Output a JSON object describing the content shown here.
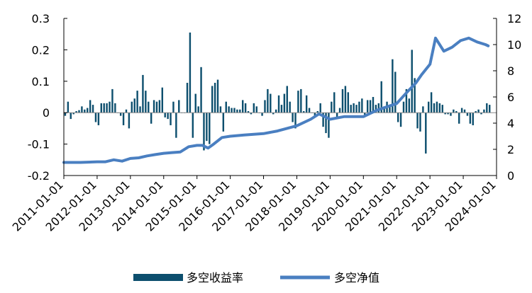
{
  "chart_data": {
    "type": "bar+line",
    "left_axis": {
      "ticks": [
        -0.2,
        -0.1,
        0,
        0.1,
        0.2,
        0.3
      ],
      "labels": [
        "-0.2",
        "-0.1",
        "0",
        "0.1",
        "0.2",
        "0.3"
      ],
      "range": [
        -0.2,
        0.3
      ]
    },
    "right_axis": {
      "ticks": [
        0,
        2,
        4,
        6,
        8,
        10,
        12
      ],
      "labels": [
        "0",
        "2",
        "4",
        "6",
        "8",
        "10",
        "12"
      ],
      "range": [
        0,
        12
      ]
    },
    "x_axis": {
      "range": [
        "2011-01-01",
        "2024-01-01"
      ],
      "tick_labels": [
        "2011-01-01",
        "2012-01-01",
        "2013-01-01",
        "2014-01-01",
        "2015-01-01",
        "2016-01-01",
        "2017-01-01",
        "2018-01-01",
        "2019-01-01",
        "2020-01-01",
        "2021-01-01",
        "2022-01-01",
        "2023-01-01",
        "2024-01-01"
      ]
    },
    "legend": {
      "placement": "bottom"
    },
    "series": [
      {
        "name": "多空收益率",
        "type": "bar",
        "axis": "left",
        "color": "#0d4f6e",
        "points": [
          [
            "2011-01",
            -0.01
          ],
          [
            "2011-02",
            0.035
          ],
          [
            "2011-03",
            -0.02
          ],
          [
            "2011-04",
            -0.005
          ],
          [
            "2011-05",
            0.005
          ],
          [
            "2011-06",
            0.008
          ],
          [
            "2011-07",
            0.02
          ],
          [
            "2011-08",
            0.01
          ],
          [
            "2011-09",
            0.015
          ],
          [
            "2011-10",
            0.04
          ],
          [
            "2011-11",
            0.025
          ],
          [
            "2011-12",
            -0.03
          ],
          [
            "2012-01",
            -0.04
          ],
          [
            "2012-02",
            0.03
          ],
          [
            "2012-03",
            0.03
          ],
          [
            "2012-04",
            0.03
          ],
          [
            "2012-05",
            0.035
          ],
          [
            "2012-06",
            0.075
          ],
          [
            "2012-07",
            0.03
          ],
          [
            "2012-08",
            0.0
          ],
          [
            "2012-09",
            -0.01
          ],
          [
            "2012-10",
            -0.04
          ],
          [
            "2012-11",
            0.01
          ],
          [
            "2012-12",
            -0.05
          ],
          [
            "2013-01",
            0.035
          ],
          [
            "2013-02",
            0.045
          ],
          [
            "2013-03",
            0.07
          ],
          [
            "2013-04",
            0.02
          ],
          [
            "2013-05",
            0.12
          ],
          [
            "2013-06",
            0.07
          ],
          [
            "2013-07",
            0.035
          ],
          [
            "2013-08",
            -0.035
          ],
          [
            "2013-09",
            0.04
          ],
          [
            "2013-10",
            0.035
          ],
          [
            "2013-11",
            0.04
          ],
          [
            "2013-12",
            0.08
          ],
          [
            "2014-01",
            -0.015
          ],
          [
            "2014-02",
            -0.02
          ],
          [
            "2014-03",
            -0.04
          ],
          [
            "2014-04",
            0.035
          ],
          [
            "2014-05",
            -0.08
          ],
          [
            "2014-06",
            0.04
          ],
          [
            "2014-07",
            0.0
          ],
          [
            "2014-08",
            0.0
          ],
          [
            "2014-09",
            0.095
          ],
          [
            "2014-10",
            0.255
          ],
          [
            "2014-11",
            -0.08
          ],
          [
            "2014-12",
            0.06
          ],
          [
            "2015-01",
            0.02
          ],
          [
            "2015-02",
            0.145
          ],
          [
            "2015-03",
            -0.12
          ],
          [
            "2015-04",
            -0.09
          ],
          [
            "2015-05",
            -0.1
          ],
          [
            "2015-06",
            0.085
          ],
          [
            "2015-07",
            0.095
          ],
          [
            "2015-08",
            0.105
          ],
          [
            "2015-09",
            0.02
          ],
          [
            "2015-10",
            -0.06
          ],
          [
            "2015-11",
            0.035
          ],
          [
            "2015-12",
            0.02
          ],
          [
            "2016-01",
            0.015
          ],
          [
            "2016-02",
            0.015
          ],
          [
            "2016-03",
            0.01
          ],
          [
            "2016-04",
            0.01
          ],
          [
            "2016-05",
            0.04
          ],
          [
            "2016-06",
            0.03
          ],
          [
            "2016-07",
            0.005
          ],
          [
            "2016-08",
            -0.005
          ],
          [
            "2016-09",
            0.03
          ],
          [
            "2016-10",
            0.02
          ],
          [
            "2016-11",
            0.0
          ],
          [
            "2016-12",
            -0.01
          ],
          [
            "2017-01",
            0.04
          ],
          [
            "2017-02",
            0.075
          ],
          [
            "2017-03",
            0.06
          ],
          [
            "2017-04",
            -0.005
          ],
          [
            "2017-05",
            0.01
          ],
          [
            "2017-06",
            0.055
          ],
          [
            "2017-07",
            0.025
          ],
          [
            "2017-08",
            0.06
          ],
          [
            "2017-09",
            0.085
          ],
          [
            "2017-10",
            0.035
          ],
          [
            "2017-11",
            -0.03
          ],
          [
            "2017-12",
            -0.05
          ],
          [
            "2018-01",
            0.07
          ],
          [
            "2018-02",
            0.075
          ],
          [
            "2018-03",
            0.005
          ],
          [
            "2018-04",
            0.055
          ],
          [
            "2018-05",
            0.015
          ],
          [
            "2018-06",
            0.0
          ],
          [
            "2018-07",
            -0.01
          ],
          [
            "2018-08",
            0.005
          ],
          [
            "2018-09",
            0.03
          ],
          [
            "2018-10",
            -0.045
          ],
          [
            "2018-11",
            -0.065
          ],
          [
            "2018-12",
            -0.08
          ],
          [
            "2019-01",
            0.035
          ],
          [
            "2019-02",
            0.065
          ],
          [
            "2019-03",
            -0.015
          ],
          [
            "2019-04",
            0.015
          ],
          [
            "2019-05",
            0.075
          ],
          [
            "2019-06",
            0.085
          ],
          [
            "2019-07",
            0.065
          ],
          [
            "2019-08",
            0.025
          ],
          [
            "2019-09",
            0.03
          ],
          [
            "2019-10",
            0.025
          ],
          [
            "2019-11",
            0.035
          ],
          [
            "2019-12",
            0.045
          ],
          [
            "2020-01",
            -0.01
          ],
          [
            "2020-02",
            0.04
          ],
          [
            "2020-03",
            0.04
          ],
          [
            "2020-04",
            0.05
          ],
          [
            "2020-05",
            0.025
          ],
          [
            "2020-06",
            0.03
          ],
          [
            "2020-07",
            0.1
          ],
          [
            "2020-08",
            0.02
          ],
          [
            "2020-09",
            0.035
          ],
          [
            "2020-10",
            0.02
          ],
          [
            "2020-11",
            0.17
          ],
          [
            "2020-12",
            0.13
          ],
          [
            "2021-01",
            -0.03
          ],
          [
            "2021-02",
            -0.045
          ],
          [
            "2021-03",
            0.035
          ],
          [
            "2021-04",
            0.075
          ],
          [
            "2021-05",
            0.045
          ],
          [
            "2021-06",
            0.2
          ],
          [
            "2021-07",
            0.11
          ],
          [
            "2021-08",
            -0.05
          ],
          [
            "2021-09",
            -0.06
          ],
          [
            "2021-10",
            0.02
          ],
          [
            "2021-11",
            -0.13
          ],
          [
            "2021-12",
            0.035
          ],
          [
            "2022-01",
            0.065
          ],
          [
            "2022-02",
            0.03
          ],
          [
            "2022-03",
            0.035
          ],
          [
            "2022-04",
            0.03
          ],
          [
            "2022-05",
            0.025
          ],
          [
            "2022-06",
            -0.005
          ],
          [
            "2022-07",
            -0.005
          ],
          [
            "2022-08",
            -0.01
          ],
          [
            "2022-09",
            0.01
          ],
          [
            "2022-10",
            0.005
          ],
          [
            "2022-11",
            -0.035
          ],
          [
            "2022-12",
            0.015
          ],
          [
            "2023-01",
            0.01
          ],
          [
            "2023-02",
            -0.01
          ],
          [
            "2023-03",
            -0.035
          ],
          [
            "2023-04",
            -0.04
          ],
          [
            "2023-05",
            0.005
          ],
          [
            "2023-06",
            0.01
          ],
          [
            "2023-07",
            -0.005
          ],
          [
            "2023-08",
            0.01
          ],
          [
            "2023-09",
            0.03
          ],
          [
            "2023-10",
            0.025
          ]
        ]
      },
      {
        "name": "多空净值",
        "type": "line",
        "axis": "right",
        "color": "#4a7fc1",
        "points": [
          [
            "2011-01",
            1.0
          ],
          [
            "2011-07",
            1.0
          ],
          [
            "2012-01",
            1.05
          ],
          [
            "2012-04",
            1.05
          ],
          [
            "2012-07",
            1.2
          ],
          [
            "2012-10",
            1.1
          ],
          [
            "2013-01",
            1.3
          ],
          [
            "2013-04",
            1.35
          ],
          [
            "2013-07",
            1.5
          ],
          [
            "2013-10",
            1.6
          ],
          [
            "2014-01",
            1.7
          ],
          [
            "2014-04",
            1.75
          ],
          [
            "2014-07",
            1.8
          ],
          [
            "2014-10",
            2.2
          ],
          [
            "2015-01",
            2.3
          ],
          [
            "2015-03",
            2.3
          ],
          [
            "2015-05",
            2.1
          ],
          [
            "2015-07",
            2.4
          ],
          [
            "2015-10",
            2.9
          ],
          [
            "2016-01",
            3.0
          ],
          [
            "2016-06",
            3.1
          ],
          [
            "2017-01",
            3.2
          ],
          [
            "2017-06",
            3.4
          ],
          [
            "2018-01",
            3.8
          ],
          [
            "2018-06",
            4.3
          ],
          [
            "2018-09",
            4.7
          ],
          [
            "2019-01",
            4.3
          ],
          [
            "2019-06",
            4.5
          ],
          [
            "2020-01",
            4.5
          ],
          [
            "2020-06",
            5.0
          ],
          [
            "2021-01",
            5.5
          ],
          [
            "2021-04",
            6.2
          ],
          [
            "2021-08",
            7.1
          ],
          [
            "2021-10",
            7.7
          ],
          [
            "2022-01",
            8.5
          ],
          [
            "2022-03",
            10.5
          ],
          [
            "2022-06",
            9.5
          ],
          [
            "2022-09",
            9.8
          ],
          [
            "2022-12",
            10.3
          ],
          [
            "2023-03",
            10.5
          ],
          [
            "2023-06",
            10.2
          ],
          [
            "2023-09",
            10.0
          ],
          [
            "2023-10",
            9.9
          ]
        ]
      }
    ]
  }
}
